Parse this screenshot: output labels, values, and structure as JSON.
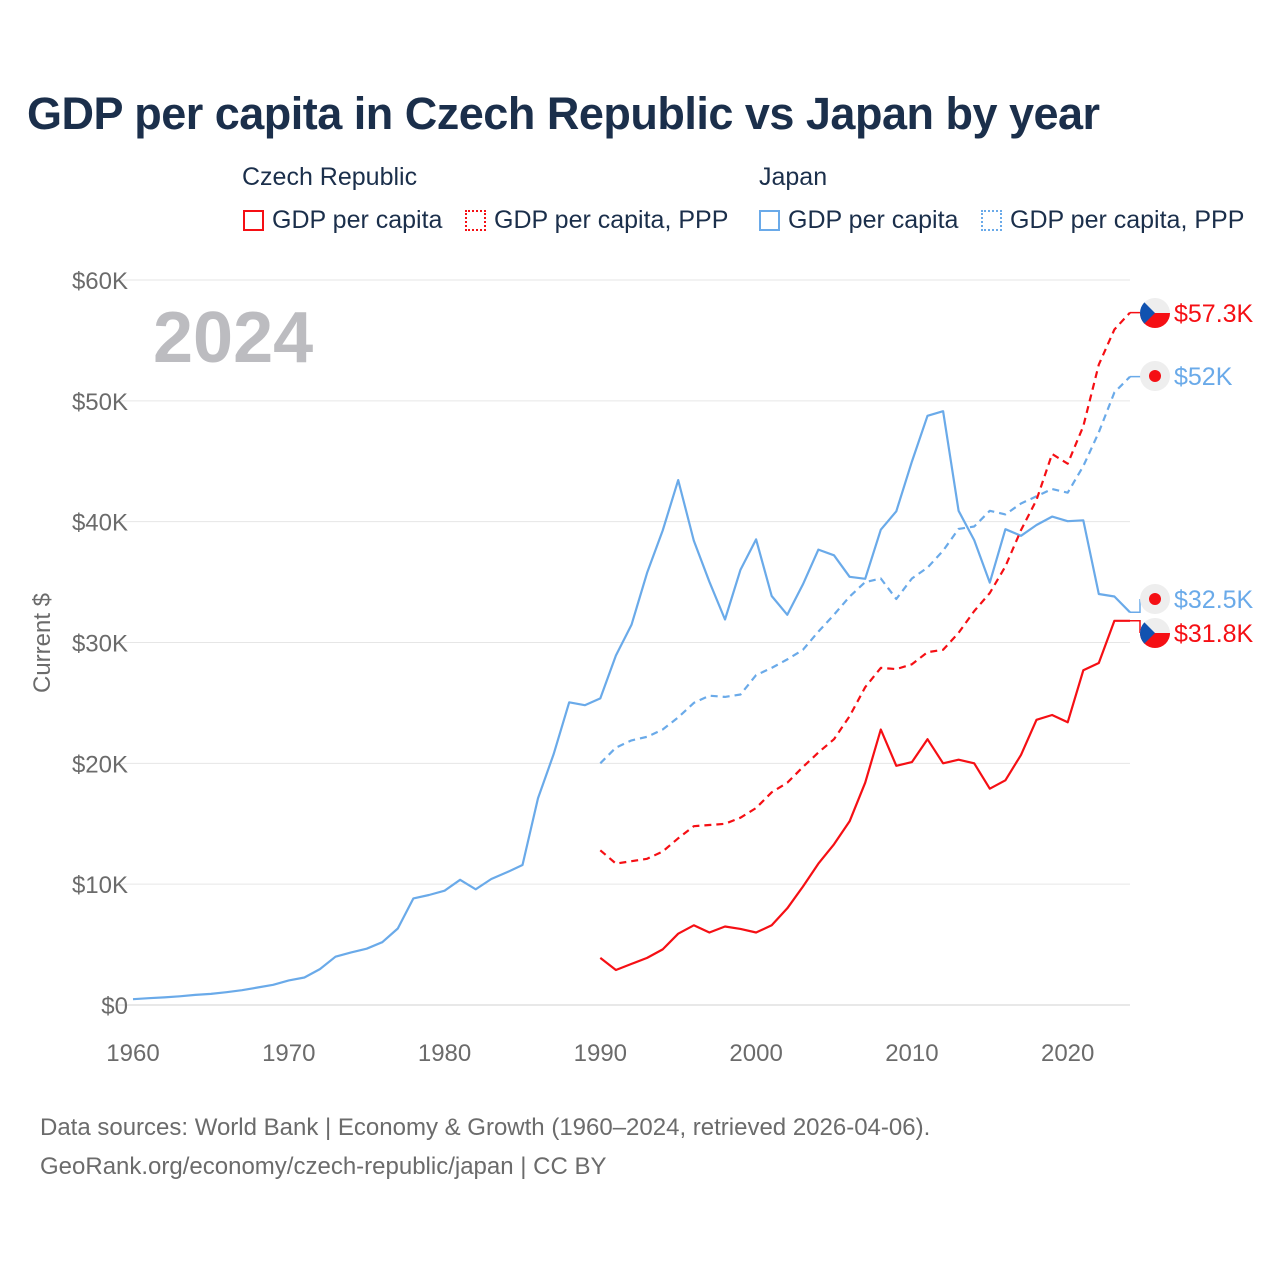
{
  "title": "GDP per capita in Czech Republic vs Japan by year",
  "colors": {
    "czech": "#f50f14",
    "japan": "#6aaae9",
    "grid": "#e6e6e6",
    "axis_text": "#6b6b6b",
    "year_watermark": "#bcbcc0"
  },
  "legend": {
    "groups": [
      {
        "name": "Czech Republic",
        "items": [
          "GDP per capita",
          "GDP per capita, PPP"
        ]
      },
      {
        "name": "Japan",
        "items": [
          "GDP per capita",
          "GDP per capita, PPP"
        ]
      }
    ]
  },
  "year_watermark": "2024",
  "source": {
    "line1": "Data sources: World Bank | Economy & Growth (1960–2024, retrieved 2026-04-06).",
    "line2": "GeoRank.org/economy/czech-republic/japan | CC BY"
  },
  "chart_data": {
    "type": "line",
    "title": "GDP per capita in Czech Republic vs Japan by year",
    "xlabel": "",
    "ylabel": "Current $",
    "xlim": [
      1960,
      2024
    ],
    "ylim": [
      0,
      60000
    ],
    "x_ticks": [
      1960,
      1970,
      1980,
      1990,
      2000,
      2010,
      2020
    ],
    "y_ticks": [
      0,
      10000,
      20000,
      30000,
      40000,
      50000,
      60000
    ],
    "y_tick_labels": [
      "$0",
      "$10K",
      "$20K",
      "$30K",
      "$40K",
      "$50K",
      "$60K"
    ],
    "grid": true,
    "legend_position": "top",
    "series": [
      {
        "name": "Japan GDP per capita",
        "country": "japan",
        "dashed": false,
        "start": 1960,
        "end_label": "$32.5K",
        "values": [
          479,
          563,
          633,
          717,
          836,
          919,
          1058,
          1228,
          1450,
          1669,
          2037,
          2272,
          2967,
          3997,
          4354,
          4659,
          5198,
          6335,
          8821,
          9105,
          9463,
          10361,
          9578,
          10425,
          10985,
          11585,
          17112,
          20745,
          25051,
          24813,
          25371,
          28925,
          31465,
          35766,
          39268,
          43440,
          38437,
          35022,
          31903,
          36027,
          38532,
          33846,
          32289,
          34808,
          37689,
          37218,
          35434,
          35275,
          39339,
          40855,
          44968,
          48760,
          49145,
          40898,
          38475,
          34961,
          39375,
          38834,
          39727,
          40416,
          40040,
          40115,
          34017,
          33806,
          32500
        ]
      },
      {
        "name": "Japan GDP per capita, PPP",
        "country": "japan",
        "dashed": true,
        "start": 1990,
        "end_label": "$52K",
        "values": [
          20000,
          21300,
          21900,
          22200,
          22800,
          23800,
          25000,
          25600,
          25500,
          25700,
          27300,
          27900,
          28600,
          29400,
          30900,
          32300,
          33800,
          35000,
          35300,
          33600,
          35300,
          36200,
          37600,
          39400,
          39600,
          40900,
          40600,
          41500,
          42100,
          42700,
          42400,
          44600,
          47400,
          50700,
          52000
        ]
      },
      {
        "name": "Czech Republic GDP per capita",
        "country": "czech",
        "dashed": false,
        "start": 1990,
        "end_label": "$31.8K",
        "values": [
          3900,
          2900,
          3400,
          3900,
          4600,
          5900,
          6600,
          6000,
          6500,
          6300,
          6000,
          6600,
          8000,
          9800,
          11700,
          13300,
          15200,
          18400,
          22800,
          19800,
          20100,
          22000,
          20000,
          20300,
          20000,
          17900,
          18600,
          20700,
          23600,
          24000,
          23400,
          27700,
          28300,
          31800,
          31800
        ]
      },
      {
        "name": "Czech Republic GDP per capita, PPP",
        "country": "czech",
        "dashed": true,
        "start": 1990,
        "end_label": "$57.3K",
        "values": [
          12800,
          11700,
          11900,
          12100,
          12700,
          13800,
          14800,
          14900,
          15000,
          15500,
          16300,
          17600,
          18400,
          19700,
          20900,
          22000,
          23900,
          26300,
          27900,
          27800,
          28200,
          29200,
          29400,
          30800,
          32600,
          34100,
          36300,
          39300,
          41800,
          45600,
          44800,
          47900,
          53000,
          55900,
          57300
        ]
      }
    ]
  }
}
